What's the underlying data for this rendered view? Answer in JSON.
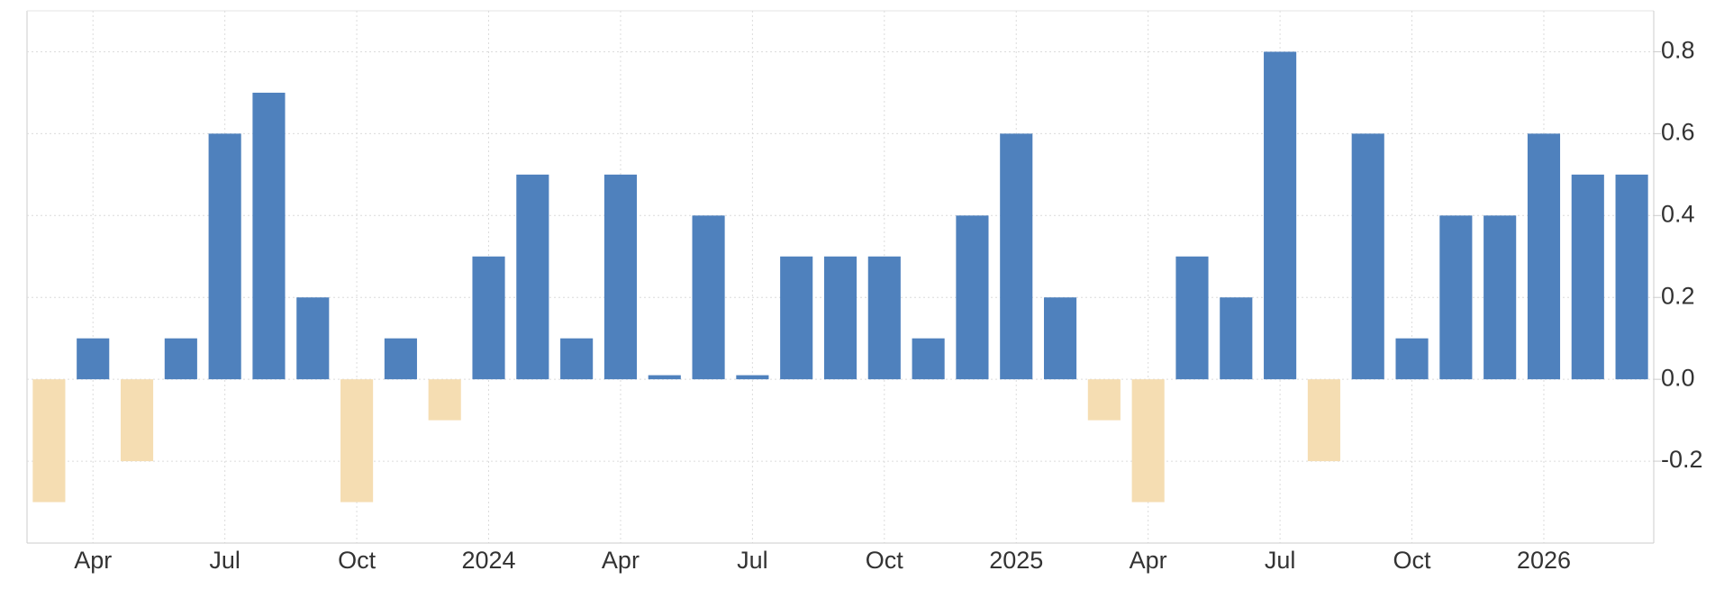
{
  "chart_data": {
    "type": "bar",
    "categories": [
      null,
      "Apr",
      null,
      null,
      "Jul",
      null,
      null,
      "Oct",
      null,
      null,
      "2024",
      null,
      null,
      "Apr",
      null,
      null,
      "Jul",
      null,
      null,
      "Oct",
      null,
      null,
      "2025",
      null,
      null,
      "Apr",
      null,
      null,
      "Jul",
      null,
      null,
      "Oct",
      null,
      null,
      "2026",
      null,
      null
    ],
    "values": [
      -0.3,
      0.1,
      -0.2,
      0.1,
      0.6,
      0.7,
      0.2,
      -0.3,
      0.1,
      -0.1,
      0.3,
      0.5,
      0.1,
      0.5,
      0.01,
      0.4,
      0.01,
      0.3,
      0.3,
      0.3,
      0.1,
      0.4,
      0.6,
      0.2,
      -0.1,
      -0.3,
      0.3,
      0.2,
      0.8,
      -0.2,
      0.6,
      0.1,
      0.4,
      0.4,
      0.6,
      0.5,
      0.5
    ],
    "color": "#4f81bd",
    "negative_color": "#f5ddb2",
    "ylim": [
      -0.4,
      0.9
    ],
    "yticks": [
      -0.2,
      {
        "value": 0,
        "label": "0.0"
      },
      0.2,
      0.4,
      0.6,
      0.8
    ],
    "grid": true
  }
}
